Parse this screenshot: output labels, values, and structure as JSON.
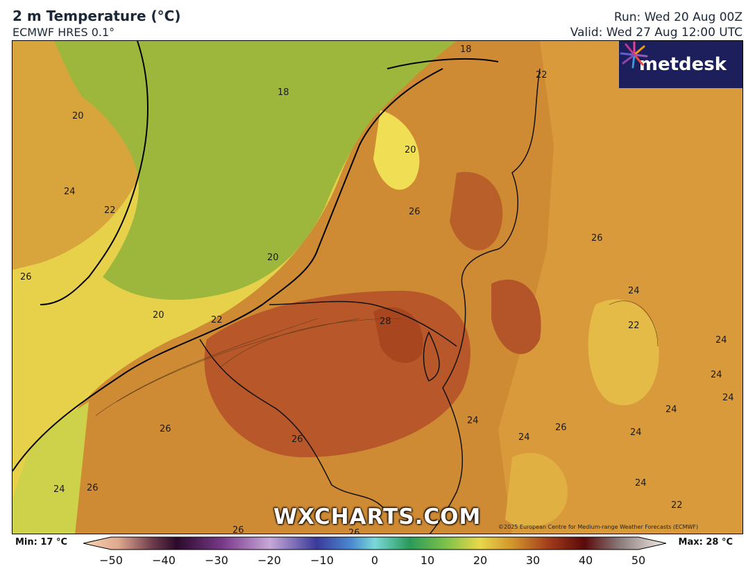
{
  "header": {
    "title": "2 m Temperature (°C)",
    "model": "ECMWF HRES 0.1°",
    "run": "Run: Wed 20 Aug 00Z",
    "valid": "Valid: Wed 27 Aug 12:00 UTC"
  },
  "logo": {
    "text": "metdesk",
    "icon": "starburst-logo-icon"
  },
  "watermark": "WXCHARTS.COM",
  "copyright": "©2025 European Centre for Medium-range Weather Forecasts (ECMWF)",
  "contour_labels": [
    "18",
    "18",
    "20",
    "20",
    "20",
    "20",
    "22",
    "22",
    "24",
    "26",
    "26",
    "26",
    "28",
    "26",
    "24",
    "22",
    "24",
    "24",
    "24",
    "24",
    "24",
    "26",
    "24",
    "26",
    "26",
    "24",
    "26",
    "24",
    "22",
    "24",
    "26",
    "22"
  ],
  "colorbar": {
    "min_label": "Min: 17 °C",
    "max_label": "Max: 28 °C",
    "ticks": [
      "−50",
      "−40",
      "−30",
      "−20",
      "−10",
      "0",
      "10",
      "20",
      "30",
      "40",
      "50"
    ]
  },
  "colors": {
    "sea": "#9db73c",
    "coast_yellow": "#e9d84a",
    "warm_orange": "#c8782e",
    "hot_brown": "#a8471f",
    "header_text": "#1b2838",
    "logo_bg": "#1c1f5c"
  }
}
